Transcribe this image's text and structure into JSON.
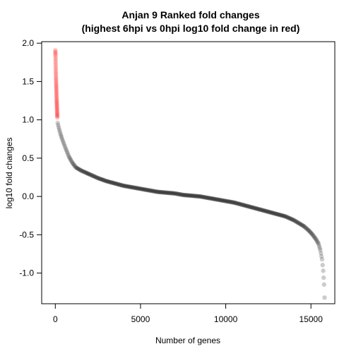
{
  "chart_data": {
    "type": "scatter",
    "title": "Anjan 9 Ranked fold changes",
    "subtitle": "(highest 6hpi vs 0hpi log10 fold change in red)",
    "xlabel": "Number of genes",
    "ylabel": "log10 fold changes",
    "xlim": [
      -800,
      16400
    ],
    "ylim": [
      -1.4,
      2.02
    ],
    "xticks": [
      0,
      5000,
      10000,
      15000
    ],
    "xtick_labels": [
      "0",
      "5000",
      "10000",
      "15000"
    ],
    "yticks": [
      -1.0,
      -0.5,
      0.0,
      0.5,
      1.0,
      1.5,
      2.0
    ],
    "ytick_labels": [
      "-1.0",
      "-0.5",
      "0.0",
      "0.5",
      "1.0",
      "1.5",
      "2.0"
    ],
    "grid": false,
    "series": [
      {
        "color": "#ff0000",
        "x": [
          0,
          10,
          20,
          30,
          40,
          50,
          60,
          70,
          80,
          90,
          100,
          110,
          120
        ],
        "y": [
          1.91,
          1.84,
          1.74,
          1.64,
          1.55,
          1.47,
          1.4,
          1.33,
          1.26,
          1.2,
          1.14,
          1.08,
          1.03
        ]
      },
      {
        "color": "#000000",
        "x": [
          140,
          200,
          300,
          400,
          600,
          800,
          1000,
          1200,
          1500,
          1800,
          2000,
          2500,
          3000,
          3500,
          4000,
          4500,
          5000,
          5500,
          6000,
          6500,
          7000,
          7500,
          8000,
          8500,
          9000,
          9500,
          10000,
          10500,
          11000,
          11500,
          12000,
          12500,
          13000,
          13500,
          14000,
          14300,
          14600,
          14900,
          15100,
          15300,
          15450,
          15550,
          15650,
          15720,
          15770,
          15800
        ],
        "y": [
          0.96,
          0.9,
          0.82,
          0.75,
          0.63,
          0.52,
          0.44,
          0.38,
          0.34,
          0.31,
          0.29,
          0.24,
          0.2,
          0.17,
          0.14,
          0.12,
          0.1,
          0.08,
          0.06,
          0.05,
          0.04,
          0.02,
          0.01,
          0.0,
          -0.02,
          -0.04,
          -0.06,
          -0.08,
          -0.11,
          -0.14,
          -0.17,
          -0.2,
          -0.23,
          -0.26,
          -0.31,
          -0.35,
          -0.39,
          -0.45,
          -0.5,
          -0.56,
          -0.62,
          -0.7,
          -0.82,
          -0.97,
          -1.15,
          -1.32
        ]
      }
    ]
  }
}
